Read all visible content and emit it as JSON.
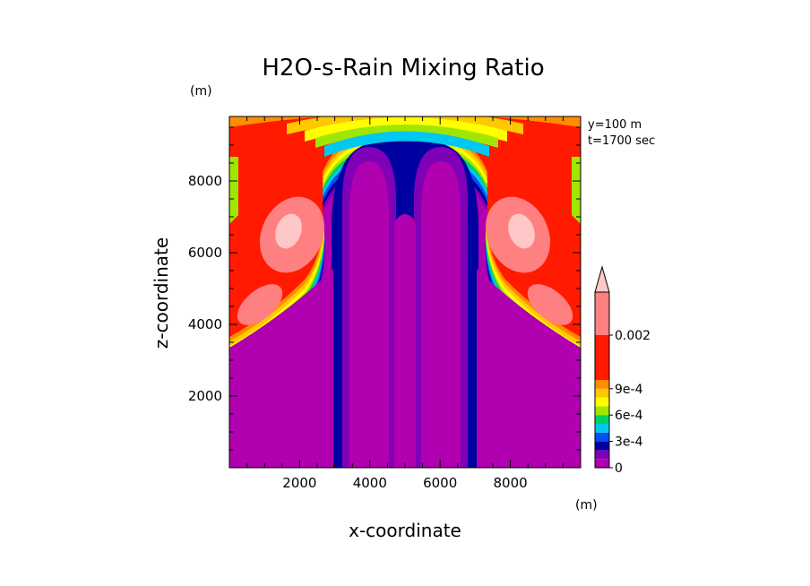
{
  "chart_data": {
    "type": "heatmap",
    "title": "H2O-s-Rain Mixing Ratio",
    "xlabel": "x-coordinate",
    "ylabel": "z-coordinate",
    "x_unit": "(m)",
    "y_unit": "(m)",
    "annotations": [
      "y=100 m",
      "t=1700 sec"
    ],
    "xlim": [
      0,
      10000
    ],
    "ylim": [
      0,
      9800
    ],
    "x_ticks": [
      "2000",
      "4000",
      "6000",
      "8000"
    ],
    "y_ticks": [
      "2000",
      "4000",
      "6000",
      "8000"
    ],
    "x_tick_values": [
      2000,
      4000,
      6000,
      8000
    ],
    "y_tick_values": [
      2000,
      4000,
      6000,
      8000
    ],
    "colorbar": {
      "levels": [
        0,
        0.0001,
        0.0002,
        0.0003,
        0.0004,
        0.0005,
        0.0006,
        0.0007,
        0.0008,
        0.0009,
        0.001,
        0.002
      ],
      "colors": [
        "#b000b0",
        "#8000b8",
        "#0000a0",
        "#0050f0",
        "#00c8f0",
        "#00d060",
        "#a0e600",
        "#ffff00",
        "#ffc800",
        "#ff8c00",
        "#ff1a00",
        "#ff8080",
        "#ffc8c8"
      ],
      "tick_labels": [
        {
          "value": 0,
          "label": "0"
        },
        {
          "value": 0.0003,
          "label": "3e-4"
        },
        {
          "value": 0.0006,
          "label": "6e-4"
        },
        {
          "value": 0.0009,
          "label": "9e-4"
        },
        {
          "value": 0.002,
          "label": "0.002"
        }
      ],
      "extend": "max"
    },
    "regions_description_levels": {
      "background": 0,
      "upper_band": 0.001,
      "core_max": 0.002
    }
  }
}
